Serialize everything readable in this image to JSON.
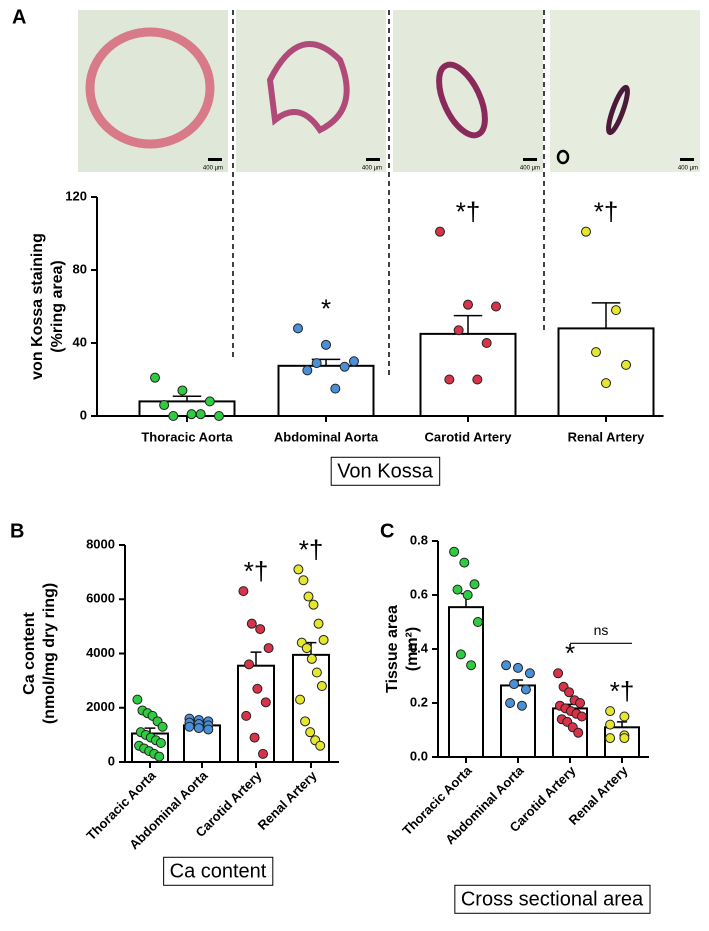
{
  "panel_labels": [
    "A",
    "B",
    "C"
  ],
  "histology": {
    "scale_labels": [
      "400 µm",
      "400 µm",
      "400 µm",
      "400 µm"
    ]
  },
  "chart_data": [
    {
      "type": "bar",
      "y_label": [
        "von Kossa staining",
        "(%ring area)"
      ],
      "box_label": "Von Kossa",
      "categories": [
        "Thoracic Aorta",
        "Abdominal Aorta",
        "Carotid Artery",
        "Renal Artery"
      ],
      "colors": [
        "#2ecc40",
        "#4a90d9",
        "#d9334a",
        "#e6e62e"
      ],
      "values": [
        8,
        27.5,
        45,
        48
      ],
      "errors": [
        2.8,
        3.5,
        10,
        14
      ],
      "points": [
        [
          21,
          14,
          8,
          6,
          1,
          0,
          0,
          1
        ],
        [
          48,
          39,
          30,
          29,
          27,
          25,
          15
        ],
        [
          101,
          61,
          60,
          47,
          40,
          20,
          20
        ],
        [
          101,
          58,
          35,
          28,
          18
        ]
      ],
      "annotations": [
        null,
        "*",
        "*†",
        "*†"
      ],
      "ylim": [
        0,
        120
      ],
      "yticks": [
        0,
        40,
        80,
        120
      ]
    },
    {
      "type": "bar",
      "y_label": [
        "Ca content",
        "(nmol/mg dry ring)"
      ],
      "box_label": "Ca content",
      "categories": [
        "Thoracic Aorta",
        "Abdominal Aorta",
        "Carotid Artery",
        "Renal Artery"
      ],
      "colors": [
        "#2ecc40",
        "#4a90d9",
        "#d9334a",
        "#e6e62e"
      ],
      "values": [
        1050,
        1350,
        3550,
        3950
      ],
      "errors": [
        200,
        50,
        500,
        450
      ],
      "points": [
        [
          2300,
          1900,
          1800,
          1700,
          1500,
          1300,
          1100,
          1000,
          900,
          800,
          700,
          600,
          500,
          400,
          300,
          200
        ],
        [
          1600,
          1550,
          1500,
          1450,
          1400,
          1350,
          1300,
          1250,
          1200
        ],
        [
          6300,
          5100,
          4900,
          4200,
          3600,
          2700,
          2200,
          1700,
          900,
          300
        ],
        [
          7100,
          6700,
          6100,
          5800,
          5100,
          4500,
          4400,
          4200,
          3800,
          3300,
          2800,
          2300,
          1500,
          1100,
          800,
          600
        ]
      ],
      "annotations": [
        null,
        null,
        "*†",
        "*†"
      ],
      "ylim": [
        0,
        8000
      ],
      "yticks": [
        0,
        2000,
        4000,
        6000,
        8000
      ]
    },
    {
      "type": "bar",
      "y_label": [
        "Tissue area",
        "(mm²)"
      ],
      "box_label": "Cross sectional area",
      "categories": [
        "Thoracic Aorta",
        "Abdominal Aorta",
        "Carotid Artery",
        "Renal Artery"
      ],
      "colors": [
        "#2ecc40",
        "#4a90d9",
        "#d9334a",
        "#e6e62e"
      ],
      "values": [
        0.555,
        0.265,
        0.18,
        0.11
      ],
      "errors": [
        0.05,
        0.02,
        0.015,
        0.02
      ],
      "points": [
        [
          0.76,
          0.72,
          0.64,
          0.62,
          0.6,
          0.5,
          0.38,
          0.34
        ],
        [
          0.34,
          0.33,
          0.31,
          0.27,
          0.25,
          0.2,
          0.19
        ],
        [
          0.31,
          0.26,
          0.24,
          0.21,
          0.2,
          0.19,
          0.18,
          0.17,
          0.16,
          0.15,
          0.14,
          0.13,
          0.11,
          0.09
        ],
        [
          0.17,
          0.15,
          0.12,
          0.08,
          0.07,
          0.07
        ]
      ],
      "annotations": [
        null,
        null,
        "*",
        "*†"
      ],
      "comparison": {
        "label": "ns"
      },
      "ylim": [
        0,
        0.8
      ],
      "yticks": [
        {
          "value": 0,
          "label": "0.0"
        },
        0.2,
        0.4,
        0.6,
        0.8
      ]
    }
  ]
}
